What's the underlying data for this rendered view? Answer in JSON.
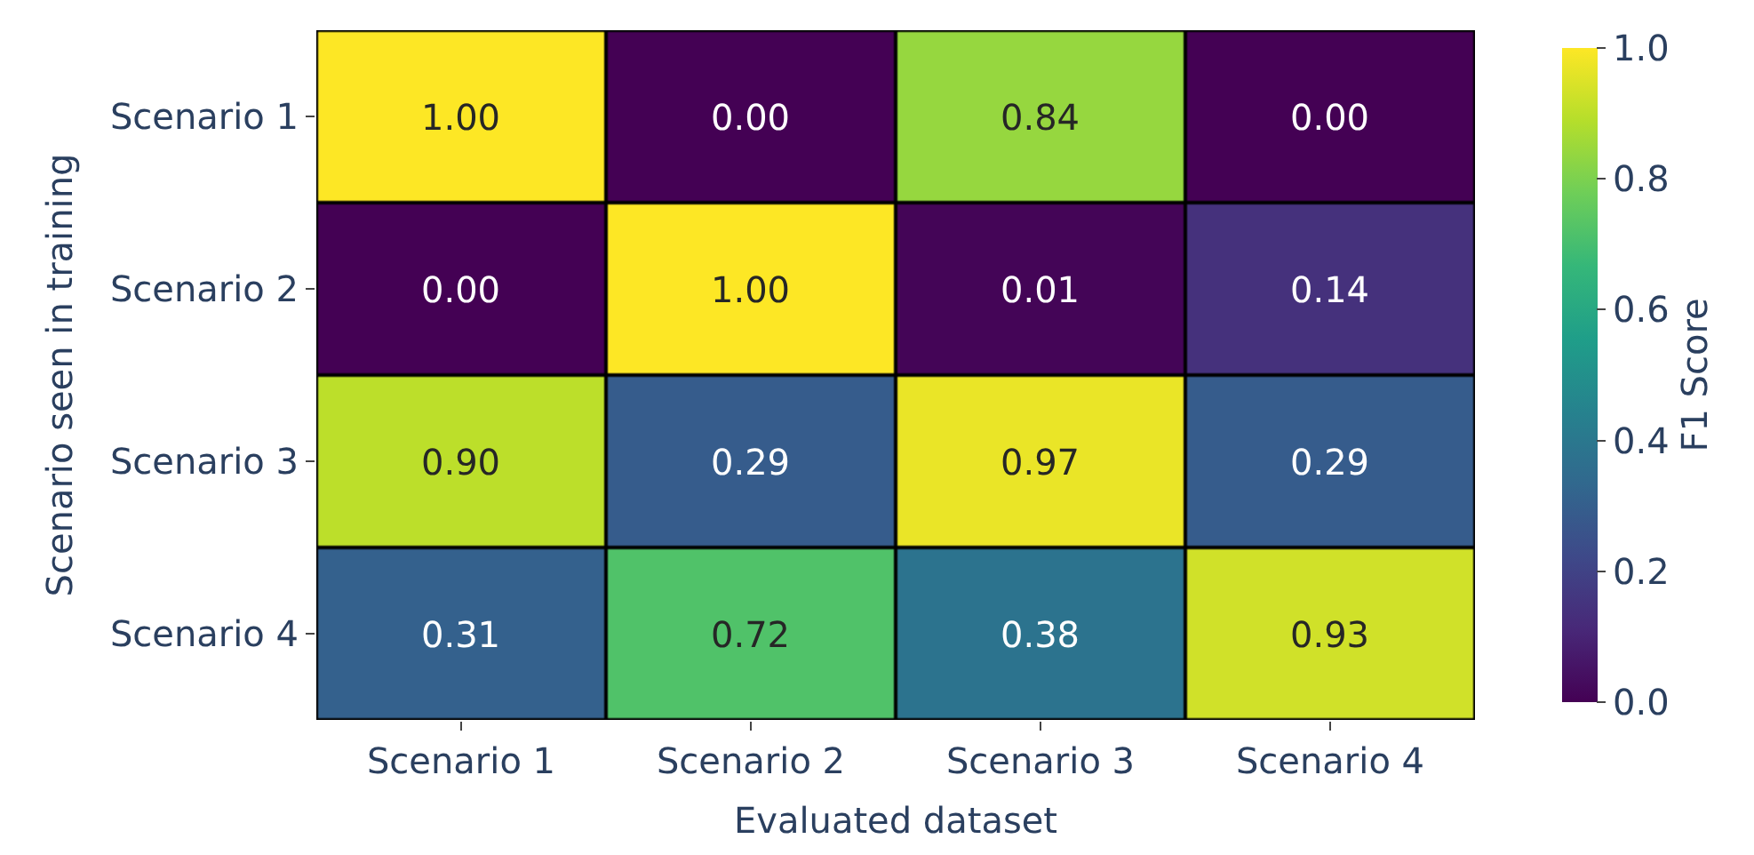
{
  "chart_data": {
    "type": "heatmap",
    "xlabel": "Evaluated dataset",
    "ylabel": "Scenario seen in training",
    "clabel": "F1 Score",
    "categories": [
      "Scenario 1",
      "Scenario 2",
      "Scenario 3",
      "Scenario 4"
    ],
    "y_categories": [
      "Scenario 1",
      "Scenario 2",
      "Scenario 3",
      "Scenario 4"
    ],
    "cells": [
      [
        1.0,
        0.0,
        0.84,
        0.0
      ],
      [
        0.0,
        1.0,
        0.01,
        0.14
      ],
      [
        0.9,
        0.29,
        0.97,
        0.29
      ],
      [
        0.31,
        0.72,
        0.38,
        0.93
      ]
    ],
    "cell_labels": [
      [
        "1.00",
        "0.00",
        "0.84",
        "0.00"
      ],
      [
        "0.00",
        "1.00",
        "0.01",
        "0.14"
      ],
      [
        "0.90",
        "0.29",
        "0.97",
        "0.29"
      ],
      [
        "0.31",
        "0.72",
        "0.38",
        "0.93"
      ]
    ],
    "clim": [
      0,
      1
    ],
    "cticks": [
      {
        "value": 0,
        "label": "0.0"
      },
      {
        "value": 0.2,
        "label": "0.2"
      },
      {
        "value": 0.4,
        "label": "0.4"
      },
      {
        "value": 0.6,
        "label": "0.6"
      },
      {
        "value": 0.8,
        "label": "0.8"
      },
      {
        "value": 1,
        "label": "1.0"
      }
    ]
  }
}
